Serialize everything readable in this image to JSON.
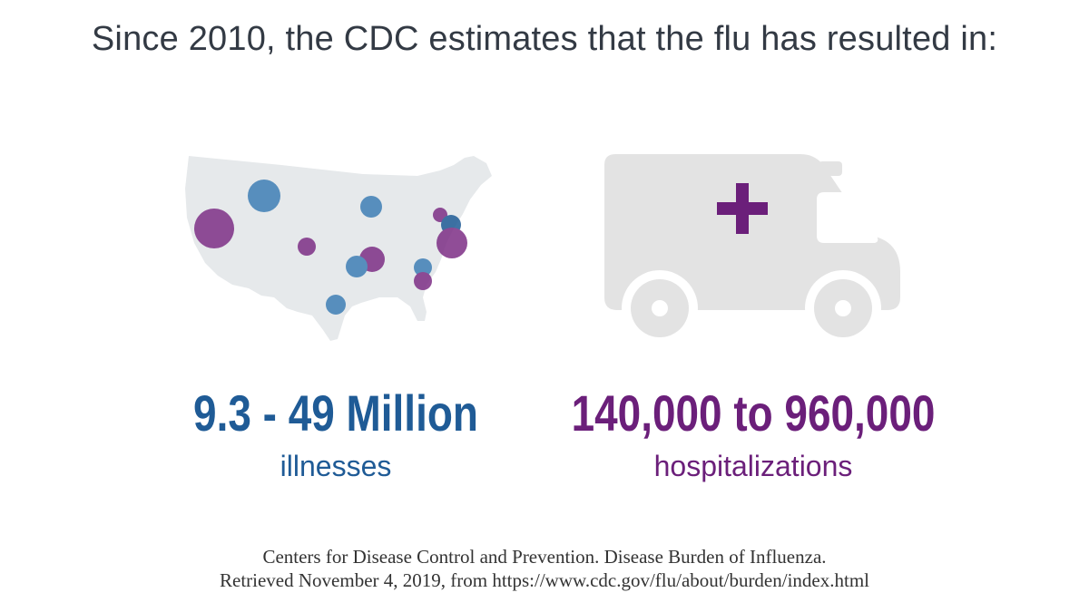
{
  "headline": "Since 2010, the CDC estimates that the flu has resulted in:",
  "illnesses": {
    "value": "9.3 - 49 Million",
    "label": "illnesses",
    "color": "#1f5b96"
  },
  "hospitalizations": {
    "value": "140,000 to 960,000",
    "label": "hospitalizations",
    "color": "#6b1f7a"
  },
  "source": {
    "line1": "Centers for Disease Control and Prevention. Disease Burden of Influenza.",
    "line2": "Retrieved November 4, 2019, from https://www.cdc.gov/flu/about/burden/index.html"
  },
  "colors": {
    "map_fill": "#e6e9eb",
    "bubble_blue": "#3f7fb5",
    "bubble_purple": "#7d2f86",
    "truck_fill": "#e3e3e3",
    "cross": "#6b1f7a"
  }
}
